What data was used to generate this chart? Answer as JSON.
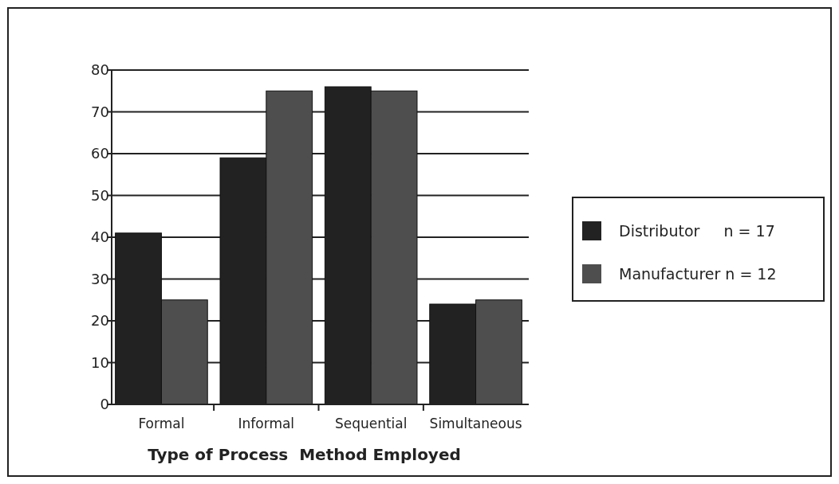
{
  "chart_data": {
    "type": "bar",
    "xlabel": "Type of Process  Method Employed",
    "categories": [
      "Formal",
      "Informal",
      "Sequential",
      "Simultaneous"
    ],
    "series": [
      {
        "name": "Distributor     n = 17",
        "color": "#222222",
        "values": [
          41,
          59,
          76,
          24
        ]
      },
      {
        "name": "Manufacturer n = 12",
        "color": "#4e4e4e",
        "values": [
          25,
          75,
          75,
          25
        ]
      }
    ],
    "ylim": [
      0,
      80
    ],
    "yticks": [
      0,
      10,
      20,
      30,
      40,
      50,
      60,
      70,
      80
    ],
    "grid": "y",
    "legend": "right"
  }
}
